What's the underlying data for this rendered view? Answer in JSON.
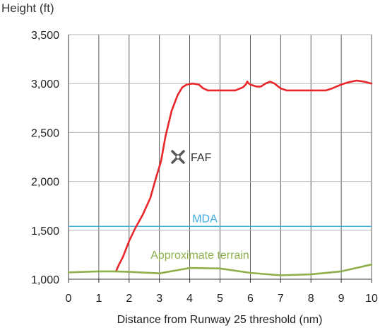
{
  "chart_data": {
    "type": "line",
    "ylabel": "Height (ft)",
    "xlabel": "Distance from Runway 25 threshold (nm)",
    "xlim": [
      0,
      10
    ],
    "ylim": [
      1000,
      3500
    ],
    "x_ticks": [
      0,
      1,
      2,
      3,
      4,
      5,
      6,
      7,
      8,
      9,
      10
    ],
    "y_ticks": [
      1000,
      1500,
      2000,
      2500,
      3000,
      3500
    ],
    "y_tick_labels": [
      "1,000",
      "1,500",
      "2,000",
      "2,500",
      "3,000",
      "3,500"
    ],
    "grid": {
      "vertical": true,
      "horizontal": true
    },
    "series": [
      {
        "role": "flight-path",
        "color": "#e8262b",
        "x": [
          1.58,
          1.65,
          1.8,
          2.0,
          2.2,
          2.45,
          2.7,
          2.9,
          3.05,
          3.2,
          3.4,
          3.6,
          3.75,
          3.9,
          4.1,
          4.3,
          4.45,
          4.6,
          5.0,
          5.5,
          5.75,
          5.85,
          5.9,
          5.95,
          6.0,
          6.2,
          6.35,
          6.5,
          6.65,
          6.8,
          7.0,
          7.2,
          7.5,
          8.0,
          8.5,
          8.7,
          9.0,
          9.2,
          9.5,
          9.75,
          10.0
        ],
        "y": [
          1090,
          1140,
          1230,
          1390,
          1520,
          1660,
          1830,
          2050,
          2200,
          2460,
          2720,
          2880,
          2960,
          2990,
          3000,
          2990,
          2950,
          2930,
          2930,
          2930,
          2960,
          2990,
          3020,
          3000,
          2990,
          2970,
          2970,
          3000,
          3020,
          3000,
          2950,
          2930,
          2930,
          2930,
          2930,
          2950,
          2990,
          3010,
          3030,
          3020,
          3000
        ]
      },
      {
        "name": "Approximate terrain",
        "color": "#8db04a",
        "x": [
          0,
          1,
          1.5,
          2,
          3,
          4,
          5,
          6,
          7,
          8,
          9,
          10
        ],
        "y": [
          1070,
          1080,
          1080,
          1075,
          1060,
          1115,
          1110,
          1065,
          1040,
          1050,
          1080,
          1150
        ]
      }
    ],
    "reference_lines": [
      {
        "name": "MDA",
        "y": 1540,
        "color": "#3aaee0"
      }
    ],
    "annotations": [
      {
        "text": "FAF",
        "x": 3.95,
        "y": 2250,
        "icon": "cross-marker-icon",
        "color": "#555555"
      }
    ]
  }
}
